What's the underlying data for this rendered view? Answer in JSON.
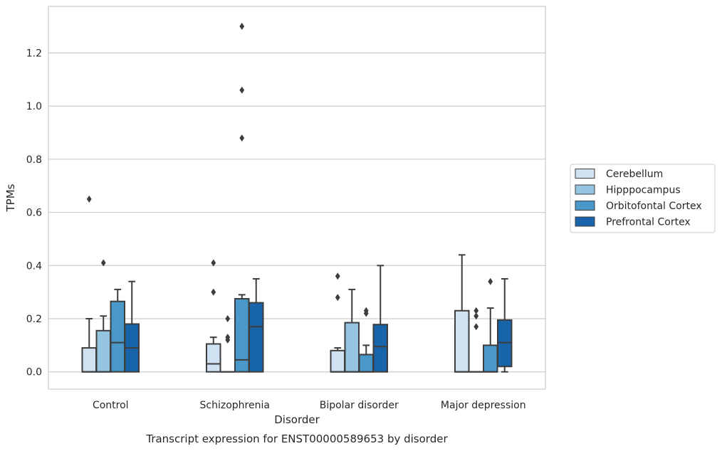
{
  "chart_data": {
    "type": "box",
    "caption": "Transcript expression for ENST00000589653 by disorder",
    "xlabel": "Disorder",
    "ylabel": "TPMs",
    "ylim": [
      -0.065,
      1.375
    ],
    "yticks": [
      0.0,
      0.2,
      0.4,
      0.6,
      0.8,
      1.0,
      1.2
    ],
    "ytick_labels": [
      "0.0",
      "0.2",
      "0.4",
      "0.6",
      "0.8",
      "1.0",
      "1.2"
    ],
    "grid": "horizontal",
    "legend_position": "right",
    "categories": [
      "Control",
      "Schizophrenia",
      "Bipolar disorder",
      "Major depression"
    ],
    "series": [
      {
        "name": "Cerebellum",
        "color": "#d0e1f2",
        "boxes": [
          {
            "whislo": 0.0,
            "q1": 0.0,
            "med": 0.0,
            "q3": 0.09,
            "whishi": 0.2,
            "fliers": [
              0.65
            ]
          },
          {
            "whislo": 0.0,
            "q1": 0.0,
            "med": 0.03,
            "q3": 0.105,
            "whishi": 0.13,
            "fliers": [
              0.41,
              0.3
            ]
          },
          {
            "whislo": 0.0,
            "q1": 0.0,
            "med": 0.0,
            "q3": 0.08,
            "whishi": 0.09,
            "fliers": [
              0.36,
              0.28
            ]
          },
          {
            "whislo": 0.0,
            "q1": 0.0,
            "med": 0.0,
            "q3": 0.23,
            "whishi": 0.44,
            "fliers": []
          }
        ]
      },
      {
        "name": "Hipppocampus",
        "color": "#94c4df",
        "boxes": [
          {
            "whislo": 0.0,
            "q1": 0.0,
            "med": 0.0,
            "q3": 0.155,
            "whishi": 0.21,
            "fliers": [
              0.41
            ]
          },
          {
            "whislo": 0.0,
            "q1": 0.0,
            "med": 0.0,
            "q3": 0.0,
            "whishi": 0.0,
            "fliers": [
              0.2,
              0.13,
              0.12
            ]
          },
          {
            "whislo": 0.0,
            "q1": 0.0,
            "med": 0.0,
            "q3": 0.185,
            "whishi": 0.31,
            "fliers": []
          },
          {
            "whislo": 0.0,
            "q1": 0.0,
            "med": 0.0,
            "q3": 0.0,
            "whishi": 0.0,
            "fliers": [
              0.23,
              0.21,
              0.17
            ]
          }
        ]
      },
      {
        "name": "Orbitofontal Cortex",
        "color": "#4a98c9",
        "boxes": [
          {
            "whislo": 0.0,
            "q1": 0.0,
            "med": 0.11,
            "q3": 0.265,
            "whishi": 0.31,
            "fliers": []
          },
          {
            "whislo": 0.0,
            "q1": 0.0,
            "med": 0.045,
            "q3": 0.275,
            "whishi": 0.29,
            "fliers": [
              1.3,
              1.06,
              0.88
            ]
          },
          {
            "whislo": 0.0,
            "q1": 0.0,
            "med": 0.0,
            "q3": 0.065,
            "whishi": 0.1,
            "fliers": [
              0.23,
              0.22
            ]
          },
          {
            "whislo": 0.0,
            "q1": 0.0,
            "med": 0.0,
            "q3": 0.1,
            "whishi": 0.24,
            "fliers": [
              0.34
            ]
          }
        ]
      },
      {
        "name": "Prefrontal Cortex",
        "color": "#1764ab",
        "boxes": [
          {
            "whislo": 0.0,
            "q1": 0.0,
            "med": 0.09,
            "q3": 0.18,
            "whishi": 0.34,
            "fliers": []
          },
          {
            "whislo": 0.0,
            "q1": 0.0,
            "med": 0.17,
            "q3": 0.26,
            "whishi": 0.35,
            "fliers": []
          },
          {
            "whislo": 0.0,
            "q1": 0.0,
            "med": 0.095,
            "q3": 0.178,
            "whishi": 0.4,
            "fliers": []
          },
          {
            "whislo": 0.0,
            "q1": 0.02,
            "med": 0.11,
            "q3": 0.195,
            "whishi": 0.35,
            "fliers": []
          }
        ]
      }
    ]
  }
}
